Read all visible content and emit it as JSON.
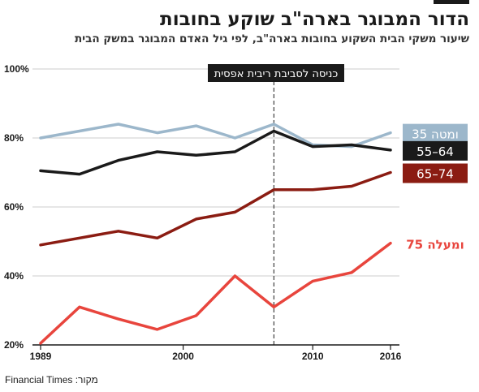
{
  "title": "הדור המבוגר בארה\"ב שוקע בחובות",
  "subtitle": "שיעור משקי הבית השקוע בחובות בארה\"ב, לפי גיל האדם המבוגר במשק הבית",
  "source": "מקור: Financial Times",
  "annotation": "כניסה לסביבת ריבית אפסית",
  "colors": {
    "under35": "#9cb7cb",
    "55to64": "#1a1a1a",
    "65to74": "#8b1c12",
    "over75": "#e8453d",
    "grid": "#cccccc",
    "axis": "#1a1a1a"
  },
  "chart_data": {
    "type": "line",
    "x": [
      1989,
      1992,
      1995,
      1998,
      2001,
      2004,
      2007,
      2010,
      2013,
      2016
    ],
    "xticks": [
      1989,
      2000,
      2010,
      2016
    ],
    "yticks": [
      20,
      40,
      60,
      80,
      100
    ],
    "ytick_labels": [
      "20%",
      "40%",
      "60%",
      "80%",
      "100%"
    ],
    "ylim": [
      20,
      100
    ],
    "xlim": [
      1989,
      2016
    ],
    "grid": true,
    "annotation_x": 2007,
    "series": [
      {
        "key": "under35",
        "name": "35 ומטה",
        "label_style": "box",
        "values": [
          80,
          82,
          84,
          81.5,
          83.5,
          80,
          84,
          78,
          77.5,
          81.5
        ]
      },
      {
        "key": "55to64",
        "name": "55–64",
        "label_style": "box",
        "values": [
          70.5,
          69.5,
          73.5,
          76,
          75,
          76,
          82,
          77.5,
          78,
          76.5
        ]
      },
      {
        "key": "65to74",
        "name": "65–74",
        "label_style": "box",
        "values": [
          49,
          51,
          53,
          51,
          56.5,
          58.5,
          65,
          65,
          66,
          70
        ]
      },
      {
        "key": "over75",
        "name": "75 ומעלה",
        "label_style": "text",
        "values": [
          20.5,
          31,
          27.5,
          24.5,
          28.5,
          40,
          31,
          38.5,
          41,
          49.5
        ]
      }
    ]
  }
}
